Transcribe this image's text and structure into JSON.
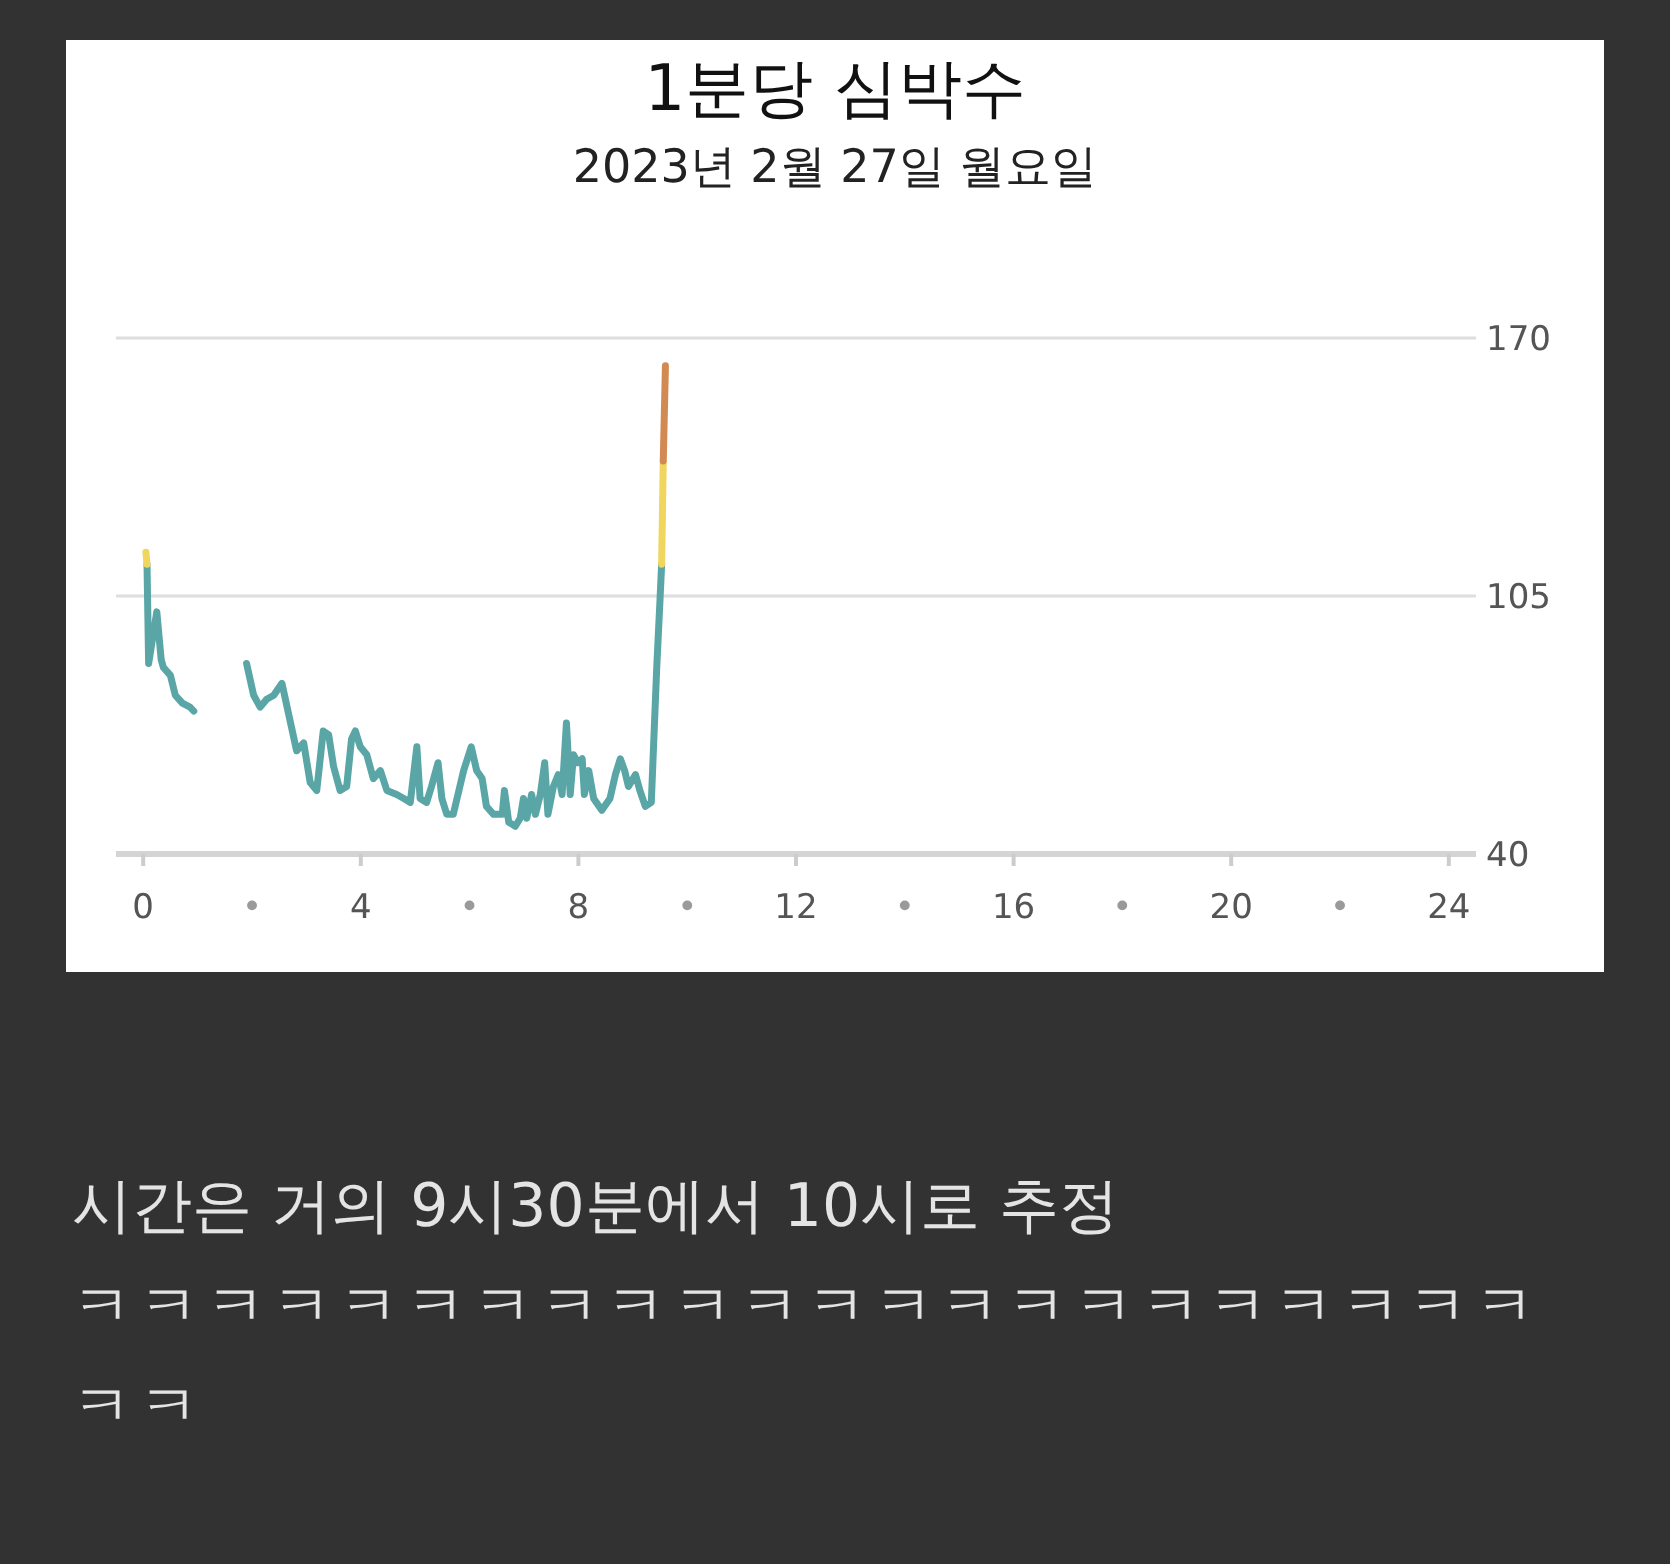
{
  "chart_data": {
    "type": "line",
    "title": "1분당 심박수",
    "subtitle": "2023년 2월 27일 월요일",
    "xlim": [
      -0.5,
      24.5
    ],
    "xticks": [
      0,
      {
        "value": 2,
        "label": "•"
      },
      4,
      {
        "value": 6,
        "label": "•"
      },
      8,
      {
        "value": 10,
        "label": "•"
      },
      12,
      {
        "value": 14,
        "label": "•"
      },
      16,
      {
        "value": 18,
        "label": "•"
      },
      20,
      {
        "value": 22,
        "label": "•"
      },
      24
    ],
    "ylim": [
      40,
      170
    ],
    "yticks": [
      40,
      105,
      170
    ],
    "grid": "y",
    "line_style": "solid",
    "series": [
      {
        "color": "#5aa6a7",
        "x": [
          0.07,
          0.1,
          0.25,
          0.33,
          0.37,
          0.5,
          0.59,
          0.72,
          0.86,
          0.93
        ],
        "values": [
          113,
          88,
          101,
          89,
          87,
          85,
          80,
          78,
          77,
          76
        ]
      },
      {
        "color": "#5aa6a7",
        "x": [
          1.9,
          2.03,
          2.15,
          2.27,
          2.4,
          2.55,
          2.82,
          2.95,
          3.07,
          3.19,
          3.31,
          3.41,
          3.5,
          3.62,
          3.74,
          3.83,
          3.9,
          3.99,
          4.11,
          4.23,
          4.36,
          4.48,
          4.66,
          4.79,
          4.91,
          5.03,
          5.09,
          5.21,
          5.3,
          5.42,
          5.49,
          5.58,
          5.7,
          5.89,
          6.03,
          6.13,
          6.23,
          6.31,
          6.44,
          6.6,
          6.64,
          6.72,
          6.84,
          6.93,
          6.99,
          7.05,
          7.14,
          7.21,
          7.3,
          7.38,
          7.44,
          7.54,
          7.63,
          7.7,
          7.78,
          7.85,
          7.91,
          7.99,
          8.07,
          8.11,
          8.19,
          8.28,
          8.43,
          8.58,
          8.68,
          8.77,
          8.85,
          8.92,
          9.05,
          9.13,
          9.23,
          9.34,
          9.44,
          9.5,
          9.53
        ],
        "values": [
          88,
          80,
          77,
          79,
          80,
          83,
          66,
          68,
          58,
          56,
          71,
          70,
          62,
          56,
          57,
          69,
          71,
          67,
          65,
          59,
          61,
          56,
          55,
          54,
          53,
          67,
          54,
          53,
          57,
          63,
          54,
          50,
          50,
          61,
          67,
          61,
          59,
          52,
          50,
          50,
          56,
          48,
          47,
          49,
          54,
          49,
          55,
          50,
          55,
          63,
          50,
          57,
          60,
          55,
          73,
          55,
          65,
          63,
          64,
          55,
          61,
          54,
          51,
          54,
          60,
          64,
          61,
          57,
          60,
          56,
          52,
          53,
          87,
          104,
          113
        ]
      },
      {
        "color": "#f0d55e",
        "x": [
          0.05,
          0.07
        ],
        "values": [
          116,
          113
        ]
      },
      {
        "color": "#f0d55e",
        "x": [
          9.53,
          9.56
        ],
        "values": [
          113,
          139
        ]
      },
      {
        "color": "#d38a52",
        "x": [
          9.56,
          9.6
        ],
        "values": [
          139,
          163
        ]
      }
    ],
    "annotations": [
      "시간은 거의 9시30분에서 10시로 추정",
      "ㅋㅋㅋㅋㅋㅋㅋㅋㅋㅋㅋㅋㅋㅋㅋㅋㅋㅋㅋㅋㅋㅋㅋㅋ"
    ]
  }
}
